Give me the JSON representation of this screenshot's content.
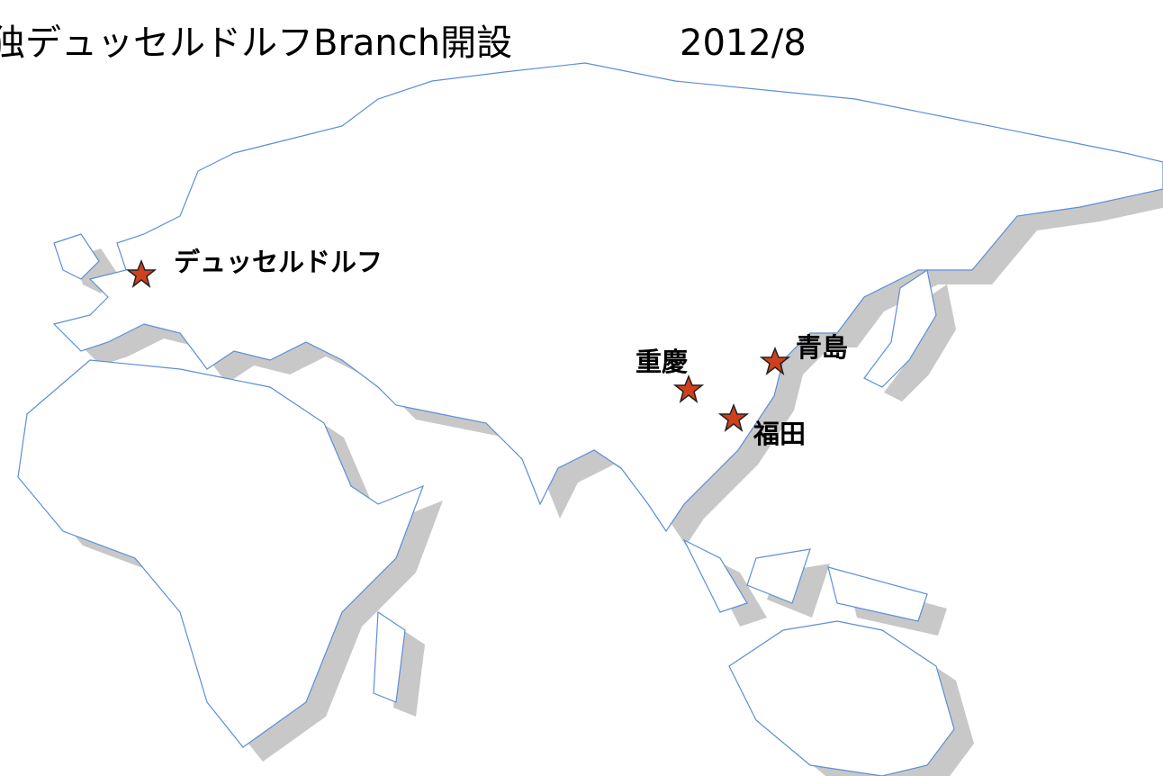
{
  "title": "独デュッセルドルフBranch開設",
  "date": "2012/8",
  "markers": [
    {
      "label": "デュッセルドルフ"
    },
    {
      "label": "重慶"
    },
    {
      "label": "青島"
    },
    {
      "label": "福田"
    }
  ]
}
